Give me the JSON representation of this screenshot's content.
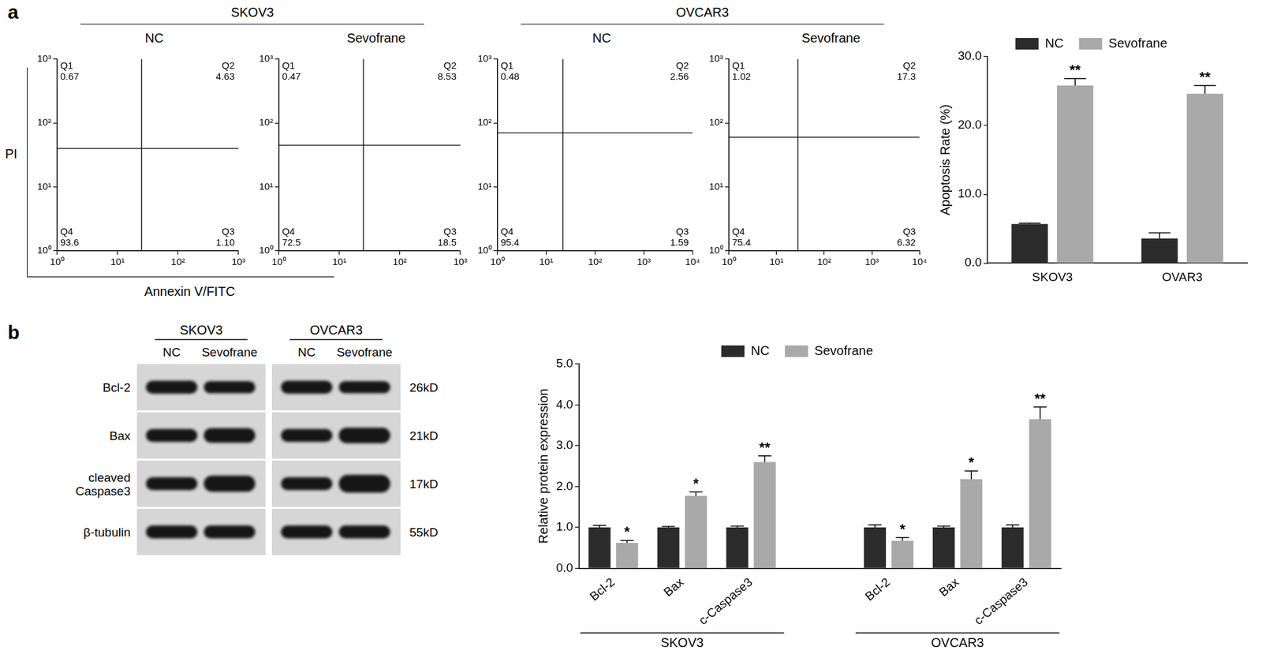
{
  "panel_labels": [
    "a",
    "b"
  ],
  "flow": {
    "x_label": "Annexin V/FITC",
    "y_label": "PI",
    "groups": [
      {
        "label": "SKOV3",
        "charts": [
          0,
          1
        ]
      },
      {
        "label": "OVCAR3",
        "charts": [
          2,
          3
        ]
      }
    ]
  },
  "chart_data": [
    {
      "type": "scatter",
      "title": "NC",
      "log": true,
      "xlim": [
        1,
        1000
      ],
      "ylim": [
        1,
        1000
      ],
      "xticks": [
        {
          "value": 1,
          "label": "10⁰"
        },
        {
          "value": 10,
          "label": "10¹"
        },
        {
          "value": 100,
          "label": "10²"
        },
        {
          "value": 1000,
          "label": "10³"
        }
      ],
      "yticks": [
        {
          "value": 1,
          "label": "10⁰"
        },
        {
          "value": 10,
          "label": "10¹"
        },
        {
          "value": 100,
          "label": "10²"
        },
        {
          "value": 1000,
          "label": "10³"
        }
      ],
      "gate": {
        "x": 25,
        "y": 40
      },
      "quadrants": [
        {
          "name": "Q1",
          "value": 0.67
        },
        {
          "name": "Q2",
          "value": 4.63
        },
        {
          "name": "Q3",
          "value": 1.1,
          "label": "1.10"
        },
        {
          "name": "Q4",
          "value": 93.6
        }
      ]
    },
    {
      "type": "scatter",
      "title": "Sevofrane",
      "log": true,
      "xlim": [
        1,
        1000
      ],
      "ylim": [
        1,
        1000
      ],
      "xticks": [
        {
          "value": 1,
          "label": "10⁰"
        },
        {
          "value": 10,
          "label": "10¹"
        },
        {
          "value": 100,
          "label": "10²"
        },
        {
          "value": 1000,
          "label": "10³"
        }
      ],
      "yticks": [
        {
          "value": 1,
          "label": "10⁰"
        },
        {
          "value": 10,
          "label": "10¹"
        },
        {
          "value": 100,
          "label": "10²"
        },
        {
          "value": 1000,
          "label": "10³"
        }
      ],
      "gate": {
        "x": 25,
        "y": 45
      },
      "quadrants": [
        {
          "name": "Q1",
          "value": 0.47
        },
        {
          "name": "Q2",
          "value": 8.53
        },
        {
          "name": "Q3",
          "value": 18.5
        },
        {
          "name": "Q4",
          "value": 72.5
        }
      ]
    },
    {
      "type": "scatter",
      "title": "NC",
      "log": true,
      "xlim": [
        1,
        10000
      ],
      "ylim": [
        1,
        1000
      ],
      "xticks": [
        {
          "value": 1,
          "label": "10⁰"
        },
        {
          "value": 10,
          "label": "10¹"
        },
        {
          "value": 100,
          "label": "10²"
        },
        {
          "value": 1000,
          "label": "10³"
        },
        {
          "value": 10000,
          "label": "10⁴"
        }
      ],
      "yticks": [
        {
          "value": 1,
          "label": "10⁰"
        },
        {
          "value": 10,
          "label": "10¹"
        },
        {
          "value": 100,
          "label": "10²"
        },
        {
          "value": 1000,
          "label": "10³"
        }
      ],
      "gate": {
        "x": 22,
        "y": 70
      },
      "quadrants": [
        {
          "name": "Q1",
          "value": 0.48
        },
        {
          "name": "Q2",
          "value": 2.56
        },
        {
          "name": "Q3",
          "value": 1.59
        },
        {
          "name": "Q4",
          "value": 95.4
        }
      ]
    },
    {
      "type": "scatter",
      "title": "Sevofrane",
      "log": true,
      "xlim": [
        1,
        10000
      ],
      "ylim": [
        1,
        1000
      ],
      "xticks": [
        {
          "value": 1,
          "label": "10⁰"
        },
        {
          "value": 10,
          "label": "10¹"
        },
        {
          "value": 100,
          "label": "10²"
        },
        {
          "value": 1000,
          "label": "10³"
        },
        {
          "value": 10000,
          "label": "10⁴"
        }
      ],
      "yticks": [
        {
          "value": 1,
          "label": "10⁰"
        },
        {
          "value": 10,
          "label": "10¹"
        },
        {
          "value": 100,
          "label": "10²"
        },
        {
          "value": 1000,
          "label": "10³"
        }
      ],
      "gate": {
        "x": 28,
        "y": 60
      },
      "quadrants": [
        {
          "name": "Q1",
          "value": 1.02
        },
        {
          "name": "Q2",
          "value": 17.3
        },
        {
          "name": "Q3",
          "value": 6.32
        },
        {
          "name": "Q4",
          "value": 75.4
        }
      ]
    },
    {
      "type": "bar",
      "y_label": "Apoptosis Rate (%)",
      "categories": [
        "SKOV3",
        "OVAR3"
      ],
      "series": [
        {
          "name": "NC",
          "color": "#2b2b2b",
          "values": [
            5.7,
            3.6
          ],
          "errors": [
            0.1,
            0.8
          ]
        },
        {
          "name": "Sevofrane",
          "color": "#a9a9a9",
          "values": [
            25.8,
            24.6
          ],
          "errors": [
            1.0,
            1.2
          ],
          "significance": [
            "**",
            "**"
          ]
        }
      ],
      "ylim": [
        0,
        30
      ],
      "yticks": [
        {
          "value": 0,
          "label": "0.0"
        },
        {
          "value": 10,
          "label": "10.0"
        },
        {
          "value": 20,
          "label": "20.0"
        },
        {
          "value": 30,
          "label": "30.0"
        }
      ],
      "legend": "top",
      "grid": false
    },
    {
      "type": "bar",
      "y_label": "Relative protein expression",
      "categories": [
        "Bcl-2",
        "Bax",
        "c-Caspase3",
        null,
        "Bcl-2",
        "Bax",
        "c-Caspase3"
      ],
      "groups": [
        {
          "label": "SKOV3",
          "span": [
            0,
            2
          ]
        },
        {
          "label": "OVCAR3",
          "span": [
            4,
            6
          ]
        }
      ],
      "series": [
        {
          "name": "NC",
          "color": "#2b2b2b",
          "values": [
            1.0,
            1.0,
            1.0,
            null,
            1.0,
            1.0,
            1.0
          ],
          "errors": [
            0.05,
            0.02,
            0.03,
            null,
            0.06,
            0.03,
            0.06
          ]
        },
        {
          "name": "Sevofrane",
          "color": "#a9a9a9",
          "values": [
            0.62,
            1.77,
            2.6,
            null,
            0.67,
            2.18,
            3.65
          ],
          "errors": [
            0.06,
            0.1,
            0.15,
            null,
            0.08,
            0.2,
            0.3
          ],
          "significance": [
            "*",
            "*",
            "**",
            null,
            "*",
            "*",
            "**"
          ]
        }
      ],
      "ylim": [
        0,
        5
      ],
      "yticks": [
        {
          "value": 0,
          "label": "0.0"
        },
        {
          "value": 1,
          "label": "1.0"
        },
        {
          "value": 2,
          "label": "2.0"
        },
        {
          "value": 3,
          "label": "3.0"
        },
        {
          "value": 4,
          "label": "4.0"
        },
        {
          "value": 5,
          "label": "5.0"
        }
      ],
      "legend": "top",
      "grid": false
    }
  ],
  "blot": {
    "cell_lines": [
      {
        "label": "SKOV3",
        "lanes": [
          "NC",
          "Sevofrane"
        ]
      },
      {
        "label": "OVCAR3",
        "lanes": [
          "NC",
          "Sevofrane"
        ]
      }
    ],
    "rows": [
      {
        "label": "Bcl-2",
        "size": "26kD"
      },
      {
        "label": "Bax",
        "size": "21kD"
      },
      {
        "label": "cleaved Caspase3",
        "size": "17kD"
      },
      {
        "label": "β-tubulin",
        "size": "55kD"
      }
    ]
  }
}
